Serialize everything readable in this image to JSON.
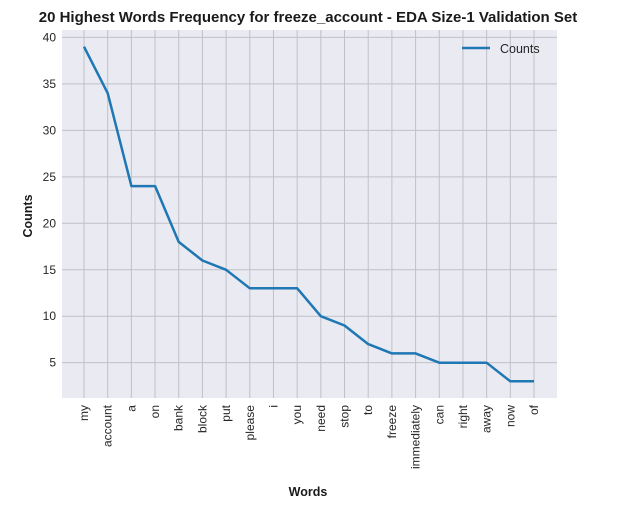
{
  "chart_data": {
    "type": "line",
    "title": "20 Highest Words Frequency for freeze_account - EDA Size-1 Validation Set",
    "xlabel": "Words",
    "ylabel": "Counts",
    "categories": [
      "my",
      "account",
      "a",
      "on",
      "bank",
      "block",
      "put",
      "please",
      "i",
      "you",
      "need",
      "stop",
      "to",
      "freeze",
      "immediately",
      "can",
      "right",
      "away",
      "now",
      "of"
    ],
    "series": [
      {
        "name": "Counts",
        "color": "#1f77b4",
        "values": [
          39,
          34,
          24,
          24,
          18,
          16,
          15,
          13,
          13,
          13,
          10,
          9,
          7,
          6,
          6,
          5,
          5,
          5,
          3,
          3
        ]
      }
    ],
    "ylim": [
      1.2,
      40.8
    ],
    "yticks": [
      5,
      10,
      15,
      20,
      25,
      30,
      35,
      40
    ],
    "grid": true,
    "legend_position": "top-right",
    "background_color": "#eaeaf2",
    "grid_color": "#c0c0c6"
  }
}
